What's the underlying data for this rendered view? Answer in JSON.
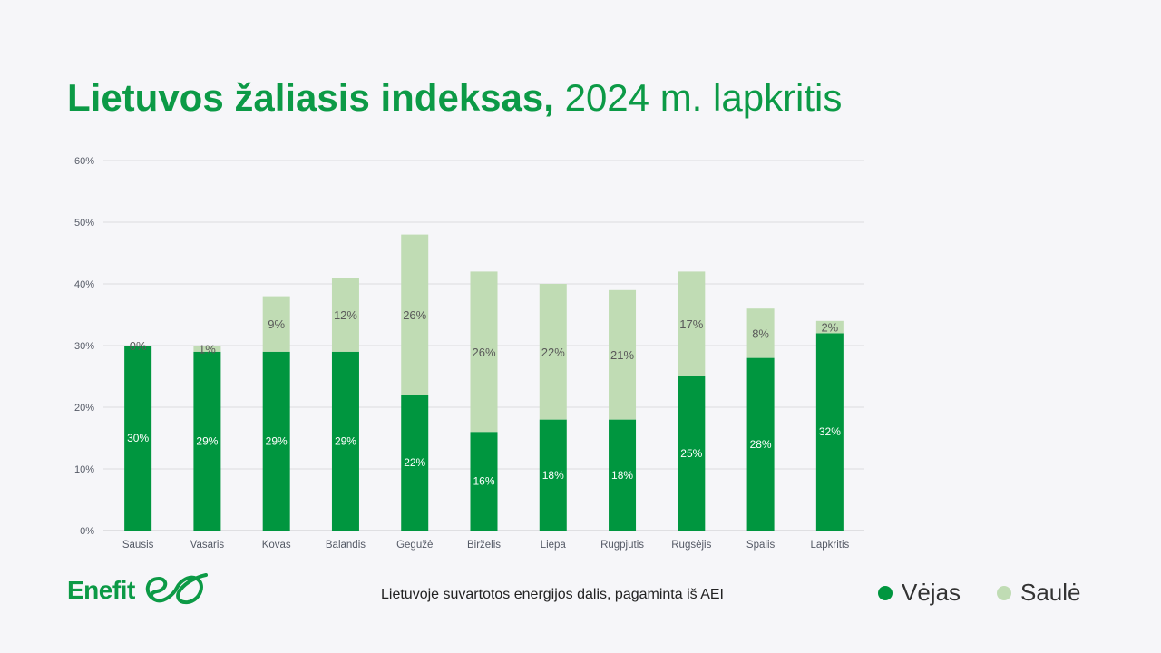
{
  "title": {
    "bold": "Lietuvos žaliasis indeksas,",
    "rest": "2024 m. lapkritis"
  },
  "caption": "Lietuvoje suvartotos energijos dalis, pagaminta iš AEI",
  "logo": {
    "text": "Enefit"
  },
  "legend": [
    {
      "name": "Vėjas",
      "color": "#00963f"
    },
    {
      "name": "Saulė",
      "color": "#c0dcb4"
    }
  ],
  "chart_data": {
    "type": "bar",
    "stacked": true,
    "title": "",
    "xlabel": "",
    "ylabel": "",
    "ylim": [
      0,
      60
    ],
    "yticks": [
      "0%",
      "10%",
      "20%",
      "30%",
      "40%",
      "50%",
      "60%"
    ],
    "grid": true,
    "categories": [
      "Sausis",
      "Vasaris",
      "Kovas",
      "Balandis",
      "Gegužė",
      "Birželis",
      "Liepa",
      "Rugpjūtis",
      "Rugsėjis",
      "Spalis",
      "Lapkritis"
    ],
    "series": [
      {
        "name": "Vėjas",
        "color": "#00963f",
        "values": [
          30,
          29,
          29,
          29,
          22,
          16,
          18,
          18,
          25,
          28,
          32
        ],
        "labels": [
          "30%",
          "29%",
          "29%",
          "29%",
          "22%",
          "16%",
          "18%",
          "18%",
          "25%",
          "28%",
          "32%"
        ]
      },
      {
        "name": "Saulė",
        "color": "#c0dcb4",
        "values": [
          0,
          1,
          9,
          12,
          26,
          26,
          22,
          21,
          17,
          8,
          2
        ],
        "labels": [
          "0%",
          "1%",
          "9%",
          "12%",
          "26%",
          "26%",
          "22%",
          "21%",
          "17%",
          "8%",
          "2%"
        ]
      }
    ]
  }
}
